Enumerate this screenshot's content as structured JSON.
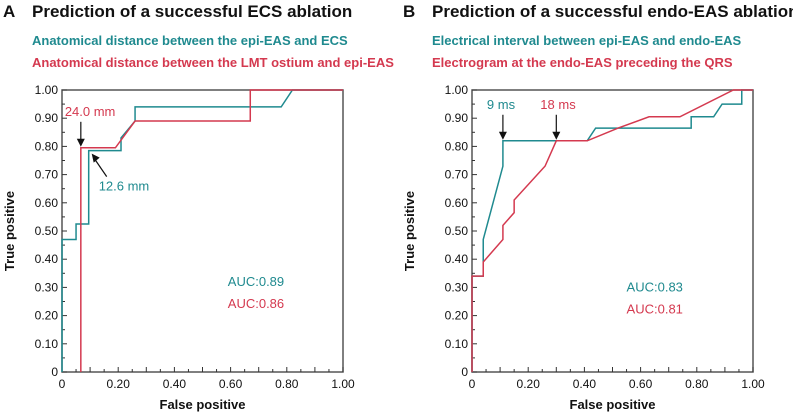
{
  "colors": {
    "teal": "#1f8a8f",
    "red": "#d4394f",
    "axis": "#555555"
  },
  "chart_data": [
    {
      "type": "line",
      "panel": "A",
      "title": "Prediction of a successful ECS ablation",
      "xlabel": "False positive",
      "ylabel": "True positive",
      "xlim": [
        0,
        1
      ],
      "ylim": [
        0,
        1
      ],
      "xticks": [
        "0",
        "0.20",
        "0.40",
        "0.60",
        "0.80",
        "1.00"
      ],
      "yticks": [
        "0",
        "0.10",
        "0.20",
        "0.30",
        "0.40",
        "0.50",
        "0.60",
        "0.70",
        "0.80",
        "0.90",
        "1.00"
      ],
      "series": [
        {
          "name": "Anatomical distance between the epi-EAS and ECS",
          "color": "teal",
          "auc": "AUC:0.89",
          "x": [
            0,
            0,
            0.05,
            0.05,
            0.095,
            0.095,
            0.21,
            0.21,
            0.26,
            0.26,
            0.78,
            0.82,
            1
          ],
          "y": [
            0,
            0.47,
            0.47,
            0.525,
            0.525,
            0.785,
            0.785,
            0.83,
            0.89,
            0.94,
            0.94,
            1,
            1
          ]
        },
        {
          "name": "Anatomical distance between the LMT ostium and epi-EAS",
          "color": "red",
          "auc": "AUC:0.86",
          "x": [
            0.067,
            0.067,
            0.19,
            0.26,
            0.67,
            0.67,
            1
          ],
          "y": [
            0,
            0.795,
            0.795,
            0.89,
            0.89,
            1,
            1
          ]
        }
      ],
      "annotations": [
        {
          "text": "24.0 mm",
          "color": "red",
          "x": 0.067,
          "y": 0.795
        },
        {
          "text": "12.6 mm",
          "color": "teal",
          "x": 0.095,
          "y": 0.785
        }
      ]
    },
    {
      "type": "line",
      "panel": "B",
      "title": "Prediction of a successful endo-EAS ablation",
      "xlabel": "False positive",
      "ylabel": "True positive",
      "xlim": [
        0,
        1
      ],
      "ylim": [
        0,
        1
      ],
      "xticks": [
        "0",
        "0.20",
        "0.40",
        "0.60",
        "0.80",
        "1.00"
      ],
      "yticks": [
        "0",
        "0.10",
        "0.20",
        "0.30",
        "0.40",
        "0.50",
        "0.60",
        "0.70",
        "0.80",
        "0.90",
        "1.00"
      ],
      "series": [
        {
          "name": "Electrical interval between epi-EAS and endo-EAS",
          "color": "teal",
          "auc": "AUC:0.83",
          "x": [
            0,
            0,
            0.04,
            0.04,
            0.11,
            0.11,
            0.41,
            0.44,
            0.78,
            0.78,
            0.86,
            0.89,
            0.96,
            0.96,
            1
          ],
          "y": [
            0,
            0.34,
            0.34,
            0.47,
            0.73,
            0.82,
            0.82,
            0.865,
            0.865,
            0.905,
            0.905,
            0.95,
            0.95,
            1,
            1
          ]
        },
        {
          "name": "Electrogram at the endo-EAS preceding the QRS",
          "color": "red",
          "auc": "AUC:0.81",
          "x": [
            0,
            0,
            0.04,
            0.04,
            0.11,
            0.11,
            0.15,
            0.15,
            0.26,
            0.3,
            0.41,
            0.52,
            0.63,
            0.74,
            0.93,
            1
          ],
          "y": [
            0,
            0.34,
            0.34,
            0.39,
            0.47,
            0.52,
            0.565,
            0.61,
            0.73,
            0.82,
            0.82,
            0.865,
            0.905,
            0.905,
            1,
            1
          ]
        }
      ],
      "annotations": [
        {
          "text": "9 ms",
          "color": "teal",
          "x": 0.11,
          "y": 0.82
        },
        {
          "text": "18 ms",
          "color": "red",
          "x": 0.3,
          "y": 0.82
        }
      ]
    }
  ]
}
